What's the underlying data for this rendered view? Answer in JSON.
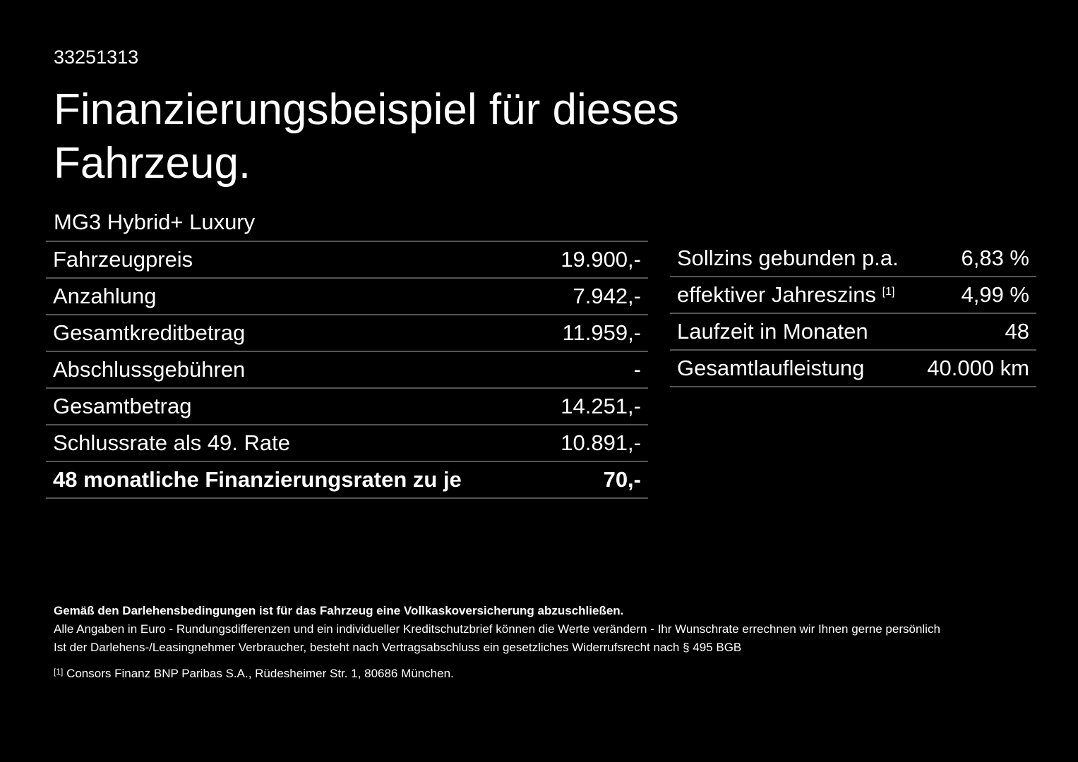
{
  "header": {
    "id": "33251313",
    "title_line1": "Finanzierungsbeispiel für dieses",
    "title_line2": "Fahrzeug.",
    "model": "MG3 Hybrid+ Luxury"
  },
  "left_table": {
    "rows": [
      [
        "Fahrzeugpreis",
        "19.900,-"
      ],
      [
        "Anzahlung",
        "7.942,-"
      ],
      [
        "Gesamtkreditbetrag",
        "11.959,-"
      ],
      [
        "Abschlussgebühren",
        "-"
      ],
      [
        "Gesamtbetrag",
        "14.251,-"
      ],
      [
        "Schlussrate als 49. Rate",
        "10.891,-"
      ],
      [
        "48 monatliche Finanzierungsraten zu je",
        "70,-"
      ]
    ]
  },
  "right_table": {
    "rows": [
      [
        "Sollzins gebunden p.a.",
        "6,83 %"
      ],
      [
        "effektiver Jahreszins",
        "4,99 %"
      ],
      [
        "Laufzeit in Monaten",
        "48"
      ],
      [
        "Gesamtlaufleistung",
        "40.000 km"
      ]
    ],
    "footnote_ref": "[1]"
  },
  "footer": {
    "bold": "Gemäß den Darlehensbedingungen ist für das Fahrzeug eine Vollkaskoversicherung abzuschließen.",
    "line1": "Alle Angaben in Euro - Rundungsdifferenzen und ein individueller Kreditschutzbrief können die Werte verändern - Ihr Wunschrate errechnen wir Ihnen gerne persönlich",
    "line2": "Ist der Darlehens-/Leasingnehmer Verbraucher, besteht nach Vertragsabschluss ein gesetzliches Widerrufsrecht nach § 495 BGB",
    "note_mark": "[1]",
    "note": "Consors Finanz BNP Paribas S.A., Rüdesheimer Str. 1, 80686 München."
  }
}
